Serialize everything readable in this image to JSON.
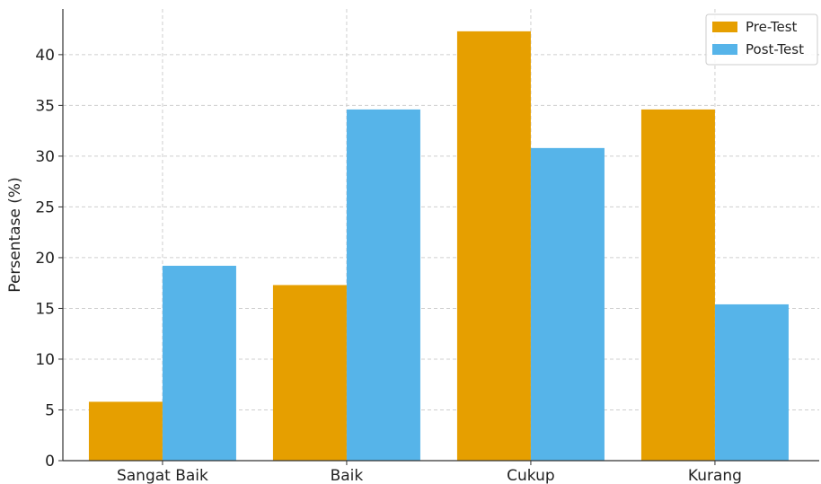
{
  "chart_data": {
    "type": "bar",
    "title": "",
    "xlabel": "",
    "ylabel": "Persentase (%)",
    "categories": [
      "Sangat Baik",
      "Baik",
      "Cukup",
      "Kurang"
    ],
    "series": [
      {
        "name": "Pre-Test",
        "color": "#E69F00",
        "values": [
          5.8,
          17.3,
          42.3,
          34.6
        ]
      },
      {
        "name": "Post-Test",
        "color": "#56B4E9",
        "values": [
          19.2,
          34.6,
          30.8,
          15.4
        ]
      }
    ],
    "ylim": [
      0,
      44.5
    ],
    "yticks": [
      0,
      5,
      10,
      15,
      20,
      25,
      30,
      35,
      40
    ],
    "grid": true,
    "legend": "top-right"
  }
}
